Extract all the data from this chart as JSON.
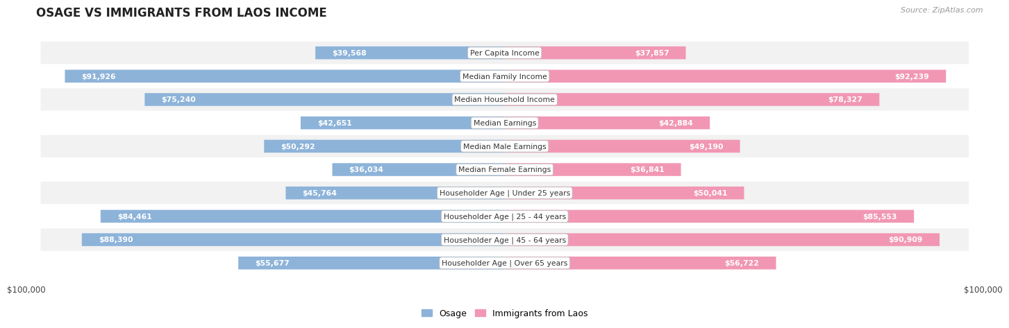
{
  "title": "OSAGE VS IMMIGRANTS FROM LAOS INCOME",
  "source": "Source: ZipAtlas.com",
  "categories": [
    "Per Capita Income",
    "Median Family Income",
    "Median Household Income",
    "Median Earnings",
    "Median Male Earnings",
    "Median Female Earnings",
    "Householder Age | Under 25 years",
    "Householder Age | 25 - 44 years",
    "Householder Age | 45 - 64 years",
    "Householder Age | Over 65 years"
  ],
  "osage_values": [
    39568,
    91926,
    75240,
    42651,
    50292,
    36034,
    45764,
    84461,
    88390,
    55677
  ],
  "laos_values": [
    37857,
    92239,
    78327,
    42884,
    49190,
    36841,
    50041,
    85553,
    90909,
    56722
  ],
  "osage_labels": [
    "$39,568",
    "$91,926",
    "$75,240",
    "$42,651",
    "$50,292",
    "$36,034",
    "$45,764",
    "$84,461",
    "$88,390",
    "$55,677"
  ],
  "laos_labels": [
    "$37,857",
    "$92,239",
    "$78,327",
    "$42,884",
    "$49,190",
    "$36,841",
    "$50,041",
    "$85,553",
    "$90,909",
    "$56,722"
  ],
  "max_value": 100000,
  "osage_color": "#8db3d9",
  "laos_color": "#f197b4",
  "row_bg_odd": "#f2f2f2",
  "row_bg_even": "#ffffff",
  "title_fontsize": 12,
  "bar_fontsize": 7.8,
  "cat_fontsize": 7.8,
  "inside_threshold": 20000
}
